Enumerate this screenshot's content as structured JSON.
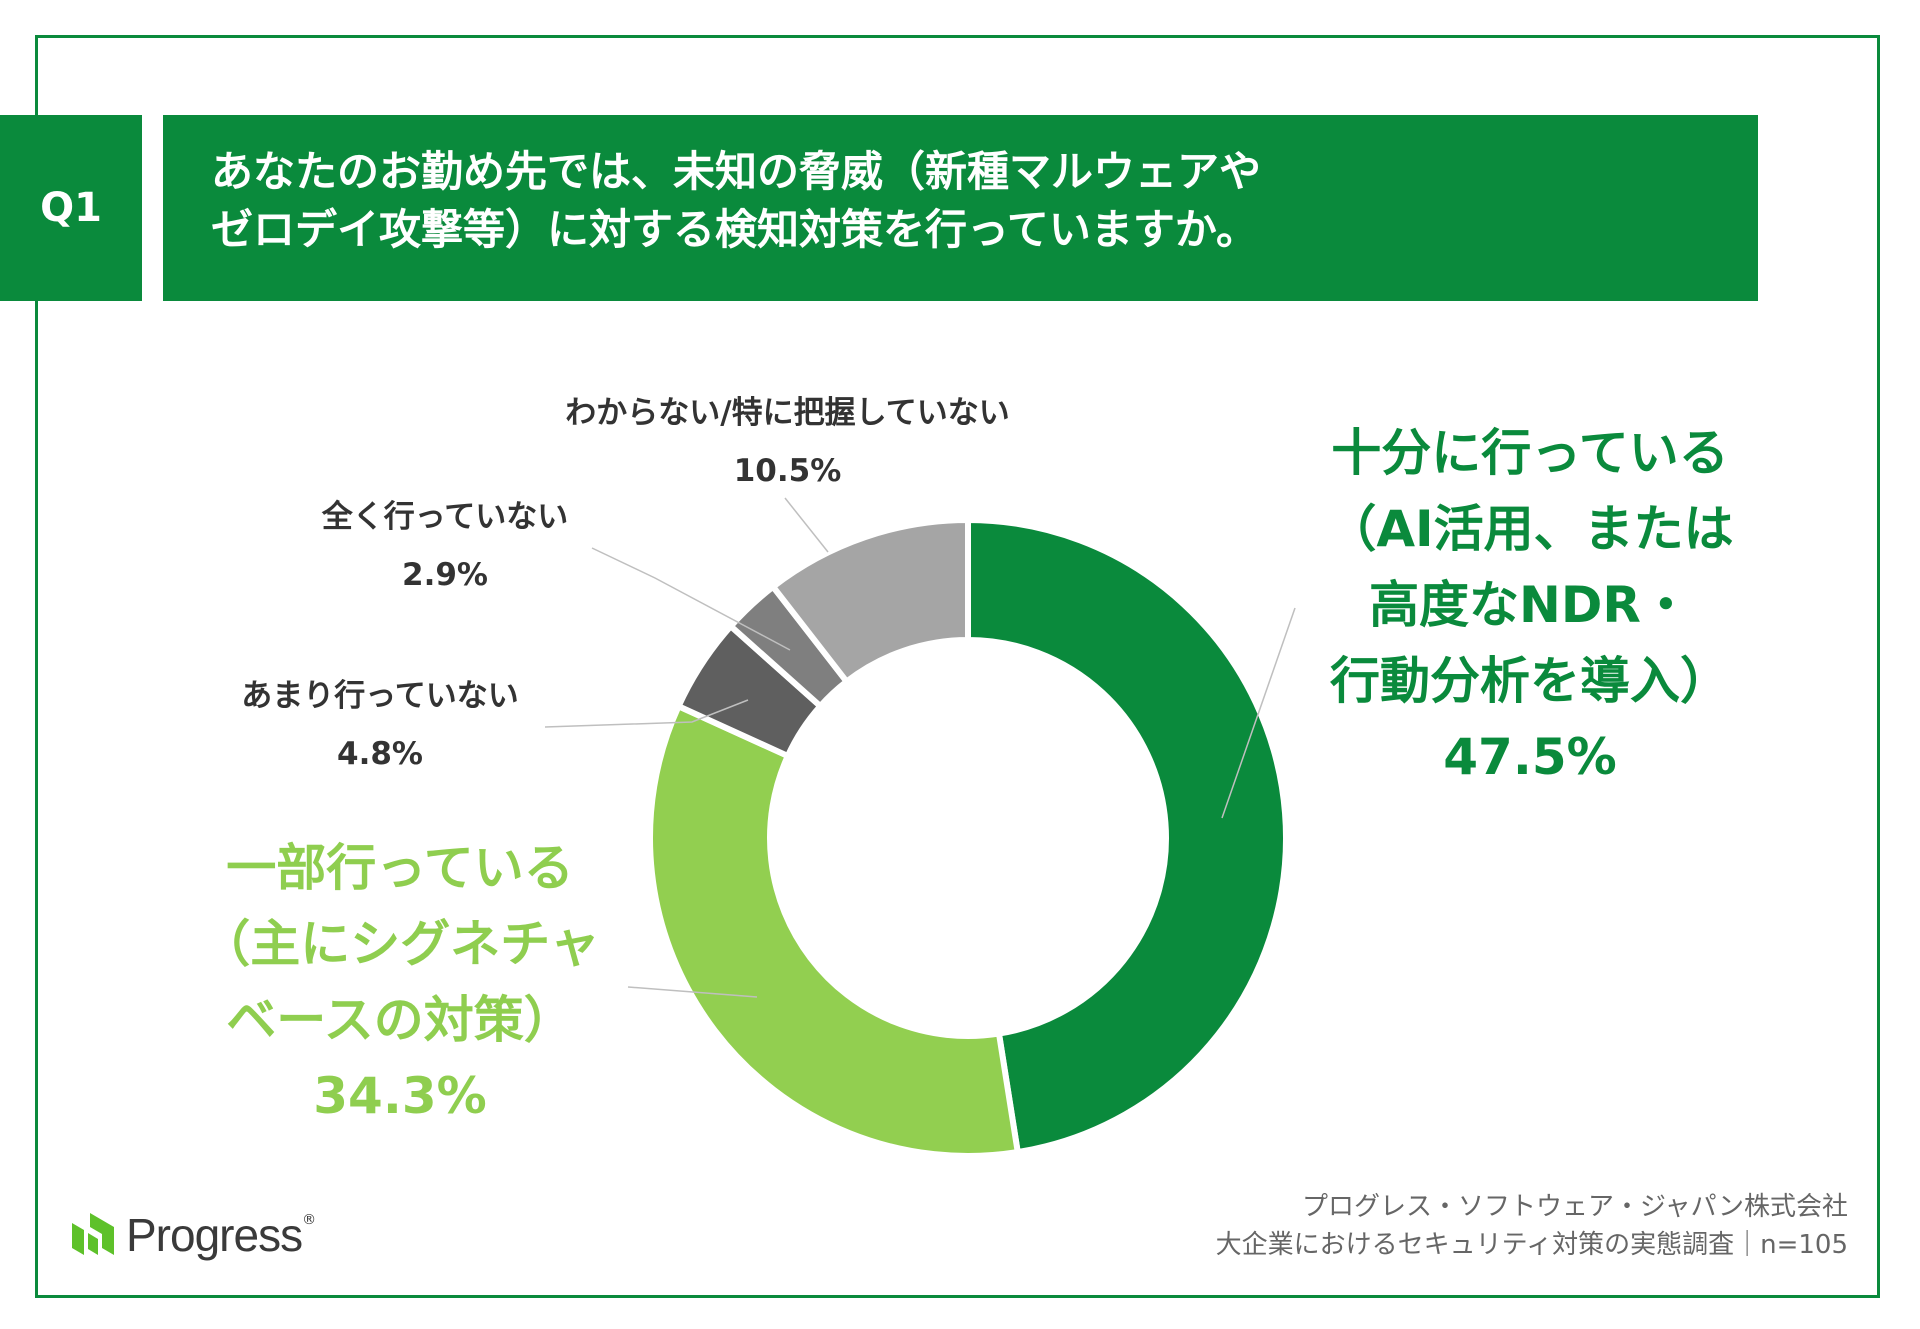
{
  "question": {
    "number": "Q1",
    "title_lines": [
      "あなたのお勤め先では、未知の脅威（新種マルウェアや",
      "ゼロデイ攻撃等）に対する検知対策を行っていますか。"
    ]
  },
  "chart_data": {
    "type": "pie",
    "donut": true,
    "slices": [
      {
        "label_lines": [
          "十分に行っている",
          "（AI活用、または",
          "高度なNDR・",
          "行動分析を導入）"
        ],
        "value": 47.5,
        "value_label": "47.5%",
        "color": "#0a8a3c"
      },
      {
        "label_lines": [
          "一部行っている",
          "（主にシグネチャ",
          "ベースの対策）"
        ],
        "value": 34.3,
        "value_label": "34.3%",
        "color": "#92cf50"
      },
      {
        "label_lines": [
          "あまり行っていない"
        ],
        "value": 4.8,
        "value_label": "4.8%",
        "color": "#5f5f5f"
      },
      {
        "label_lines": [
          "全く行っていない"
        ],
        "value": 2.9,
        "value_label": "2.9%",
        "color": "#7f7f7f"
      },
      {
        "label_lines": [
          "わからない/特に把握していない"
        ],
        "value": 10.5,
        "value_label": "10.5%",
        "color": "#a5a5a5"
      }
    ]
  },
  "logo": {
    "text": "Progress",
    "reg": "®",
    "color": "#5ec12a"
  },
  "footer": {
    "lines": [
      "プログレス・ソフトウェア・ジャパン株式会社",
      "大企業におけるセキュリティ対策の実態調査｜n=105"
    ]
  }
}
